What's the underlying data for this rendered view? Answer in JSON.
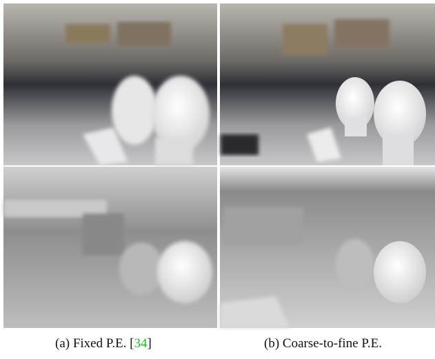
{
  "figure": {
    "panels": [
      {
        "caption": "(a) Fixed P.E. [",
        "citation": "34",
        "caption_end": "]"
      },
      {
        "caption": "(b) Coarse-to-fine P.E."
      }
    ]
  }
}
